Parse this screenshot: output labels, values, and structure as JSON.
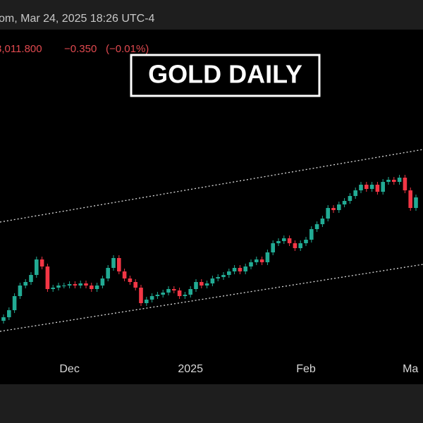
{
  "header": {
    "source_date": "om, Mar 24, 2025 18:26 UTC-4",
    "price": "3,011.800",
    "change": "−0.350",
    "change_pct": "(−0.01%)"
  },
  "chart_data": {
    "type": "candlestick",
    "title": "GOLD DAILY",
    "categories": [
      null,
      null,
      null,
      null,
      null,
      null,
      null,
      null,
      null,
      null,
      null,
      null,
      "Dec",
      null,
      null,
      null,
      null,
      null,
      null,
      null,
      null,
      null,
      null,
      null,
      null,
      null,
      null,
      null,
      null,
      null,
      null,
      null,
      null,
      null,
      "2025",
      null,
      null,
      null,
      null,
      null,
      null,
      null,
      null,
      null,
      null,
      null,
      null,
      null,
      null,
      null,
      null,
      null,
      null,
      null,
      null,
      "Feb",
      null,
      null,
      null,
      null,
      null,
      null,
      null,
      null,
      null,
      null,
      null,
      null,
      null,
      null,
      null,
      null,
      null,
      null,
      "Ma",
      null
    ],
    "open": [
      2470,
      2480,
      2500,
      2540,
      2570,
      2580,
      2600,
      2644,
      2624,
      2560,
      2564,
      2570,
      2570,
      2574,
      2570,
      2576,
      2570,
      2560,
      2570,
      2590,
      2620,
      2648,
      2610,
      2590,
      2580,
      2564,
      2520,
      2530,
      2540,
      2544,
      2550,
      2560,
      2556,
      2540,
      2544,
      2560,
      2580,
      2570,
      2576,
      2590,
      2594,
      2600,
      2610,
      2620,
      2610,
      2624,
      2636,
      2644,
      2636,
      2664,
      2690,
      2696,
      2704,
      2690,
      2676,
      2690,
      2700,
      2730,
      2744,
      2760,
      2790,
      2784,
      2800,
      2810,
      2824,
      2840,
      2856,
      2844,
      2856,
      2836,
      2864,
      2870,
      2864,
      2876,
      2840,
      2790
    ],
    "high": [
      2488,
      2508,
      2548,
      2578,
      2588,
      2608,
      2652,
      2652,
      2632,
      2572,
      2578,
      2578,
      2582,
      2582,
      2584,
      2584,
      2578,
      2578,
      2598,
      2628,
      2656,
      2656,
      2618,
      2598,
      2588,
      2572,
      2538,
      2548,
      2552,
      2558,
      2568,
      2568,
      2564,
      2552,
      2568,
      2588,
      2588,
      2584,
      2598,
      2602,
      2608,
      2618,
      2628,
      2628,
      2632,
      2644,
      2652,
      2652,
      2672,
      2698,
      2704,
      2712,
      2712,
      2698,
      2698,
      2708,
      2738,
      2752,
      2768,
      2798,
      2798,
      2808,
      2818,
      2832,
      2848,
      2864,
      2864,
      2864,
      2864,
      2872,
      2878,
      2878,
      2884,
      2884,
      2848,
      2828
    ],
    "low": [
      2462,
      2472,
      2492,
      2532,
      2562,
      2572,
      2592,
      2616,
      2552,
      2552,
      2556,
      2562,
      2562,
      2562,
      2562,
      2562,
      2552,
      2552,
      2562,
      2582,
      2612,
      2602,
      2582,
      2572,
      2556,
      2512,
      2512,
      2522,
      2532,
      2536,
      2542,
      2548,
      2532,
      2532,
      2536,
      2552,
      2562,
      2562,
      2568,
      2582,
      2586,
      2592,
      2602,
      2602,
      2602,
      2616,
      2628,
      2628,
      2628,
      2656,
      2682,
      2688,
      2682,
      2668,
      2668,
      2682,
      2692,
      2722,
      2736,
      2752,
      2776,
      2776,
      2792,
      2802,
      2816,
      2832,
      2836,
      2836,
      2828,
      2828,
      2856,
      2856,
      2856,
      2832,
      2782,
      2782
    ],
    "close": [
      2480,
      2500,
      2540,
      2570,
      2580,
      2600,
      2644,
      2624,
      2560,
      2564,
      2570,
      2570,
      2574,
      2570,
      2576,
      2570,
      2560,
      2570,
      2590,
      2620,
      2648,
      2610,
      2590,
      2580,
      2564,
      2520,
      2530,
      2540,
      2544,
      2550,
      2560,
      2556,
      2540,
      2544,
      2560,
      2580,
      2570,
      2576,
      2590,
      2594,
      2600,
      2610,
      2620,
      2610,
      2624,
      2636,
      2644,
      2636,
      2664,
      2690,
      2696,
      2704,
      2690,
      2676,
      2690,
      2700,
      2730,
      2744,
      2760,
      2790,
      2784,
      2800,
      2810,
      2824,
      2840,
      2856,
      2844,
      2856,
      2836,
      2864,
      2870,
      2864,
      2876,
      2840,
      2790,
      2820
    ],
    "up_color": "#22ab94",
    "down_color": "#f23645",
    "ylim": [
      2300,
      3300
    ]
  }
}
